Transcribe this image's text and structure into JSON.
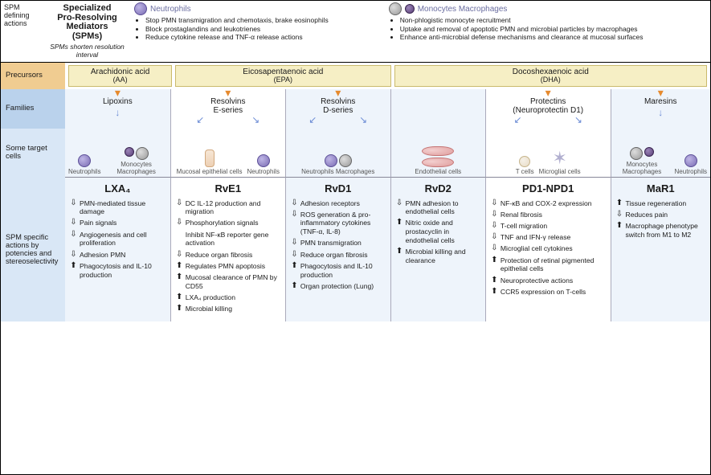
{
  "top": {
    "left_label": "SPM defining actions",
    "title_lines": [
      "Specialized",
      "Pro-Resolving",
      "Mediators",
      "(SPMs)"
    ],
    "subtitle_italic": "SPMs shorten resolution interval",
    "col_neutrophils": {
      "header": "Neutrophils",
      "bullets": [
        "Stop PMN transmigration and chemotaxis, brake eosinophils",
        "Block prostaglandins and leukotrienes",
        "Reduce cytokine release and TNF-α release actions"
      ]
    },
    "col_monocytes": {
      "header": "Monocytes Macrophages",
      "bullets": [
        "Non-phlogistic monocyte recruitment",
        "Uptake and removal of apoptotic PMN and microbial particles by macrophages",
        "Enhance anti-microbial defense mechanisms and clearance at mucosal surfaces"
      ]
    }
  },
  "row_labels": {
    "precursors": "Precursors",
    "families": "Families",
    "targets": "Some target cells",
    "actions": "SPM specific actions by potencies and stereoselectivity"
  },
  "precursors": {
    "aa": {
      "name": "Arachidonic acid",
      "abbr": "(AA)"
    },
    "epa": {
      "name": "Eicosapentaenoic acid",
      "abbr": "(EPA)"
    },
    "dha": {
      "name": "Docoshexaenoic acid",
      "abbr": "(DHA)"
    }
  },
  "families": {
    "c0": "Lipoxins",
    "c1": "Resolvins\nE-series",
    "c2": "Resolvins\nD-series",
    "c3": "",
    "c4": "Protectins\n(Neuroprotectin D1)",
    "c5": "Maresins"
  },
  "targets": {
    "c0": [
      "Neutrophils",
      "Monocytes Macrophages"
    ],
    "c1": [
      "Mucosal epithelial cells",
      "Neutrophils"
    ],
    "c2": [
      "Neutrophils Macrophages"
    ],
    "c3": [
      "Endothelial cells"
    ],
    "c4": [
      "T cells",
      "Microglial cells"
    ],
    "c5": [
      "Monocytes Macrophages",
      "Neutrophils"
    ]
  },
  "mols": {
    "c0": "LXA₄",
    "c1": "RvE1",
    "c2": "RvD1",
    "c3": "RvD2",
    "c4": "PD1-NPD1",
    "c5": "MaR1"
  },
  "actions": {
    "c0": [
      {
        "dir": "down",
        "t": "PMN-mediated tissue damage"
      },
      {
        "dir": "down",
        "t": "Pain signals"
      },
      {
        "dir": "down",
        "t": "Angiogenesis and cell proliferation"
      },
      {
        "dir": "down",
        "t": "Adhesion PMN"
      },
      {
        "dir": "up",
        "t": "Phagocytosis and IL-10 production"
      }
    ],
    "c1": [
      {
        "dir": "down",
        "t": "DC IL-12 production and migration"
      },
      {
        "dir": "down",
        "t": "Phosphorylation signals"
      },
      {
        "dir": "none",
        "t": "Inhibit NF-κB reporter gene activation"
      },
      {
        "dir": "down",
        "t": "Reduce organ fibrosis"
      },
      {
        "dir": "up",
        "t": "Regulates PMN apoptosis"
      },
      {
        "dir": "up",
        "t": "Mucosal clearance of PMN by CD55"
      },
      {
        "dir": "up",
        "t": "LXA₄ production"
      },
      {
        "dir": "up",
        "t": "Microbial killing"
      }
    ],
    "c2": [
      {
        "dir": "down",
        "t": "Adhesion receptors"
      },
      {
        "dir": "down",
        "t": "ROS generation & pro-inflammatory cytokines (TNF-α, IL-8)"
      },
      {
        "dir": "down",
        "t": "PMN transmigration"
      },
      {
        "dir": "down",
        "t": "Reduce organ fibrosis"
      },
      {
        "dir": "up",
        "t": "Phagocytosis and IL-10 production"
      },
      {
        "dir": "up",
        "t": "Organ protection (Lung)"
      }
    ],
    "c3": [
      {
        "dir": "down",
        "t": "PMN adhesion to endothelial cells"
      },
      {
        "dir": "up",
        "t": "Nitric oxide and prostacyclin in endothelial cells"
      },
      {
        "dir": "up",
        "t": "Microbial killing and clearance"
      }
    ],
    "c4": [
      {
        "dir": "down",
        "t": "NF-κB and COX-2 expression"
      },
      {
        "dir": "down",
        "t": "Renal fibrosis"
      },
      {
        "dir": "down",
        "t": "T-cell migration"
      },
      {
        "dir": "down",
        "t": "TNF and IFN-γ release"
      },
      {
        "dir": "down",
        "t": "Microglial cell cytokines"
      },
      {
        "dir": "up",
        "t": "Protection of retinal pigmented epithelial cells"
      },
      {
        "dir": "up",
        "t": "Neuroprotective actions"
      },
      {
        "dir": "up",
        "t": "CCR5 expression on T-cells"
      }
    ],
    "c5": [
      {
        "dir": "up",
        "t": "Tissue regeneration"
      },
      {
        "dir": "down",
        "t": "Reduces pain"
      },
      {
        "dir": "up",
        "t": "Macrophage phenotype switch from M1 to M2"
      }
    ]
  },
  "style": {
    "colors": {
      "border": "#000000",
      "precursor_label_bg": "#f0cc91",
      "precursor_box_bg": "#f6efc5",
      "precursor_box_border": "#caba6c",
      "blue_label_bg": "#bad2ec",
      "lightblue_bg": "#d9e7f6",
      "col_alt_bg": "#eef4fb",
      "orange_arrow": "#e68a2e",
      "blue_arrow": "#6c8cd5",
      "header_text": "#6a6da0"
    },
    "fonts": {
      "base_pt": 10,
      "mol_pt": 13,
      "small_pt": 8.5
    },
    "layout": {
      "frame_w": 885,
      "frame_h": 591,
      "row_label_w": 80,
      "grid_cols_fr": [
        1.05,
        1.15,
        1.05,
        0.95,
        1.25,
        1.0
      ]
    }
  }
}
